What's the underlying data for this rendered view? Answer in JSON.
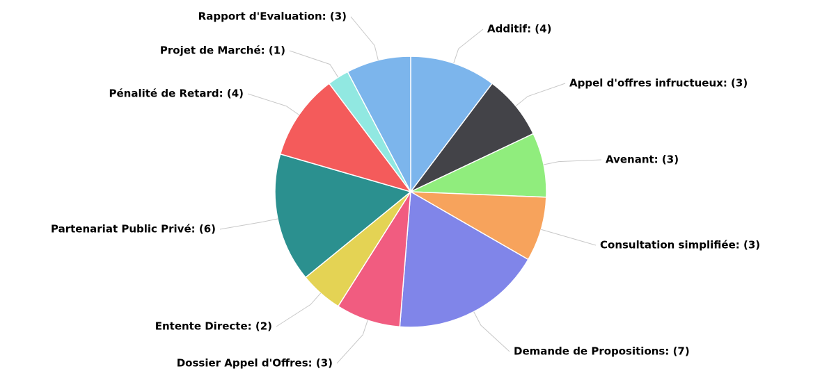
{
  "chart_data": {
    "type": "pie",
    "categories": [
      "Additif: (4)",
      "Appel d'offres infructueux: (3)",
      "Avenant: (3)",
      "Consultation simplifiée: (3)",
      "Demande de Propositions: (7)",
      "Dossier Appel d'Offres: (3)",
      "Entente Directe: (2)",
      "Partenariat Public Privé: (6)",
      "Pénalité de Retard: (4)",
      "Projet de Marché: (1)",
      "Rapport d'Evaluation: (3)"
    ],
    "values": [
      4,
      3,
      3,
      3,
      7,
      3,
      2,
      6,
      4,
      1,
      3
    ],
    "colors": [
      "#7cb5ec",
      "#434348",
      "#90ed7d",
      "#f7a35c",
      "#8085e9",
      "#f15c80",
      "#e4d354",
      "#2b908f",
      "#f45b5b",
      "#91e8e1",
      "#7cb5ec"
    ]
  }
}
